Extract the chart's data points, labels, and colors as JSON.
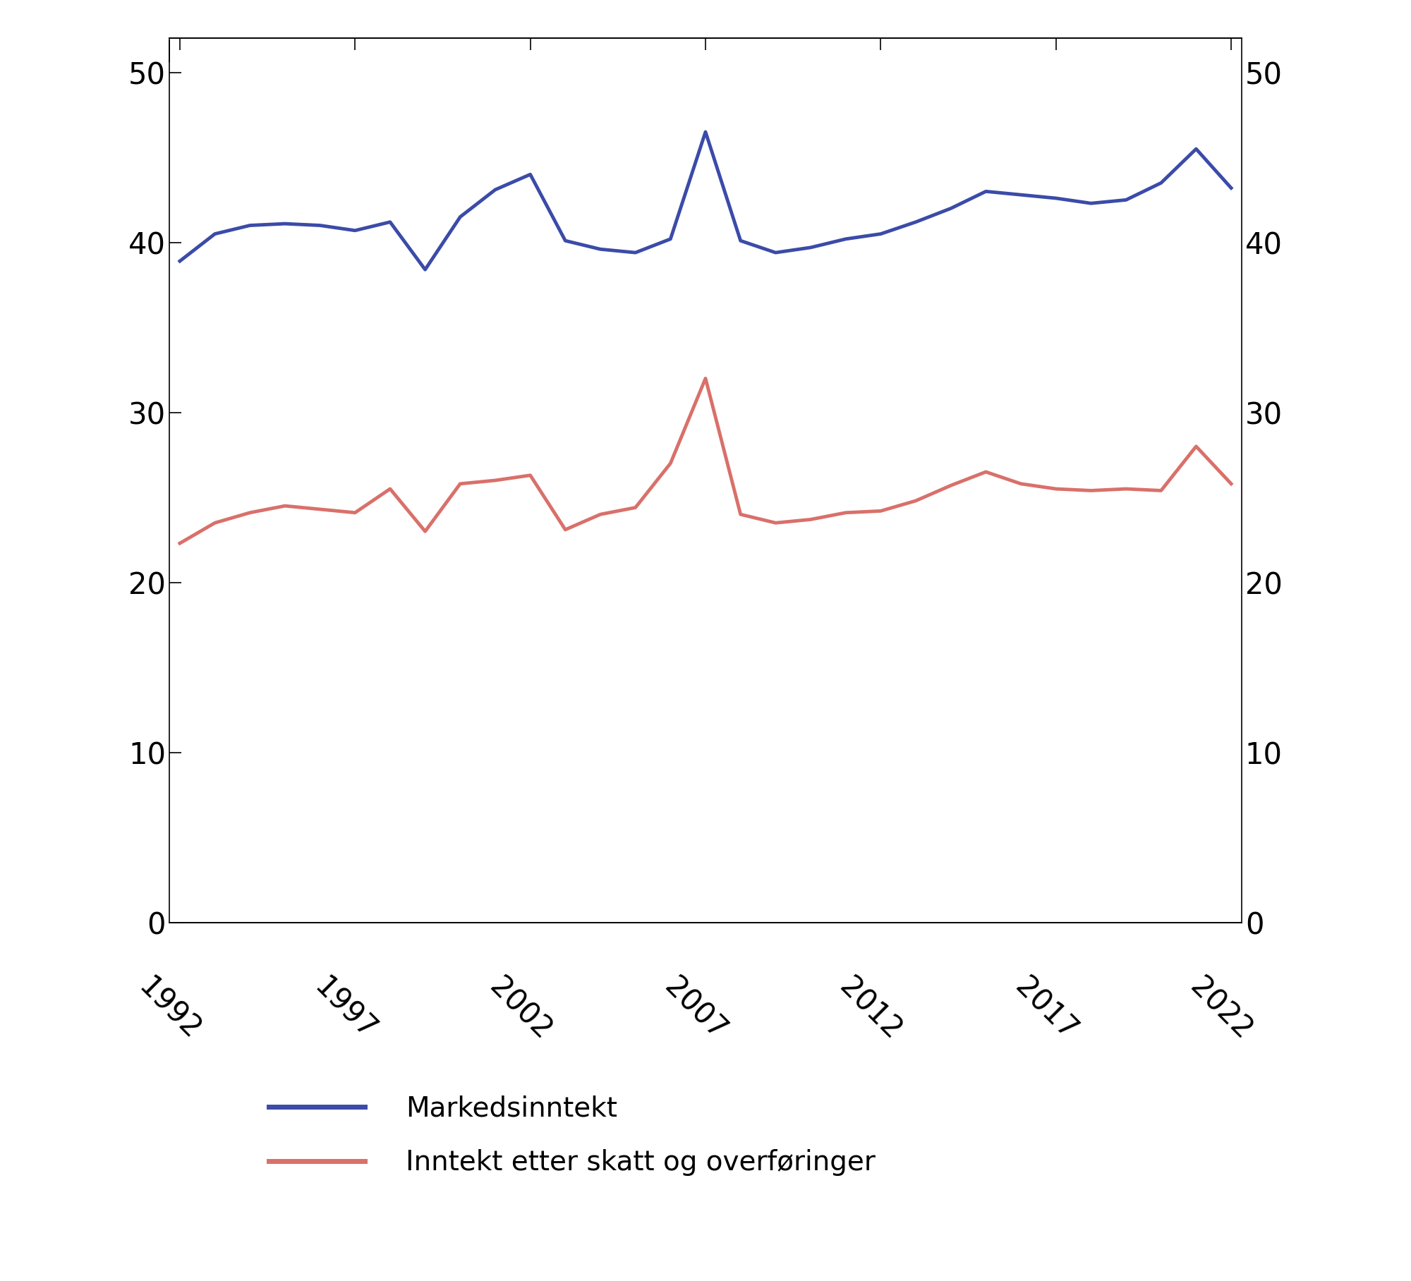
{
  "years": [
    1992,
    1993,
    1994,
    1995,
    1996,
    1997,
    1998,
    1999,
    2000,
    2001,
    2002,
    2003,
    2004,
    2005,
    2006,
    2007,
    2008,
    2009,
    2010,
    2011,
    2012,
    2013,
    2014,
    2015,
    2016,
    2017,
    2018,
    2019,
    2020,
    2021,
    2022
  ],
  "market_income": [
    38.9,
    40.5,
    41.0,
    41.1,
    41.0,
    40.7,
    41.2,
    38.4,
    41.5,
    43.1,
    44.0,
    40.1,
    39.6,
    39.4,
    40.2,
    46.5,
    40.1,
    39.4,
    39.7,
    40.2,
    40.5,
    41.2,
    42.0,
    43.0,
    42.8,
    42.6,
    42.3,
    42.5,
    43.5,
    45.5,
    43.2
  ],
  "after_tax_income": [
    22.3,
    23.5,
    24.1,
    24.5,
    24.3,
    24.1,
    25.5,
    23.0,
    25.8,
    26.0,
    26.3,
    23.1,
    24.0,
    24.4,
    27.0,
    32.0,
    24.0,
    23.5,
    23.7,
    24.1,
    24.2,
    24.8,
    25.7,
    26.5,
    25.8,
    25.5,
    25.4,
    25.5,
    25.4,
    28.0,
    25.8
  ],
  "blue_color": "#3b4ba8",
  "red_color": "#d9706a",
  "ylim": [
    0,
    52
  ],
  "yticks": [
    0,
    10,
    20,
    30,
    40,
    50
  ],
  "xticks": [
    1992,
    1997,
    2002,
    2007,
    2012,
    2017,
    2022
  ],
  "legend_label_market": "Markedsinntekt",
  "legend_label_after_tax": "Inntekt etter skatt og overføringer",
  "line_width": 3.5,
  "tick_label_fontsize": 30,
  "legend_fontsize": 28,
  "figsize": [
    20.0,
    18.16
  ],
  "dpi": 100
}
